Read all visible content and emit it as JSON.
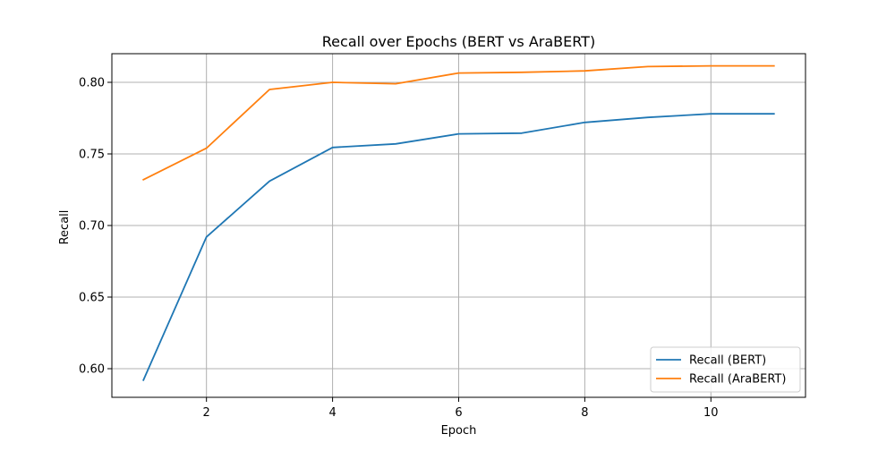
{
  "chart_data": {
    "type": "line",
    "title": "Recall over Epochs (BERT vs AraBERT)",
    "xlabel": "Epoch",
    "ylabel": "Recall",
    "x": [
      1,
      2,
      3,
      4,
      5,
      6,
      7,
      8,
      9,
      10,
      11
    ],
    "xlim": [
      0.5,
      11.5
    ],
    "ylim": [
      0.58,
      0.82
    ],
    "xticks": [
      2,
      4,
      6,
      8,
      10
    ],
    "yticks": [
      0.6,
      0.65,
      0.7,
      0.75,
      0.8
    ],
    "ytick_labels": [
      "0.60",
      "0.65",
      "0.70",
      "0.75",
      "0.80"
    ],
    "grid": true,
    "legend_position": "lower-right",
    "series": [
      {
        "name": "Recall (BERT)",
        "color": "#1f77b4",
        "values": [
          0.592,
          0.692,
          0.731,
          0.7545,
          0.757,
          0.764,
          0.7645,
          0.772,
          0.7755,
          0.778,
          0.778
        ]
      },
      {
        "name": "Recall (AraBERT)",
        "color": "#ff7f0e",
        "values": [
          0.732,
          0.754,
          0.795,
          0.8,
          0.799,
          0.8065,
          0.807,
          0.808,
          0.811,
          0.8115,
          0.8115
        ]
      }
    ]
  }
}
